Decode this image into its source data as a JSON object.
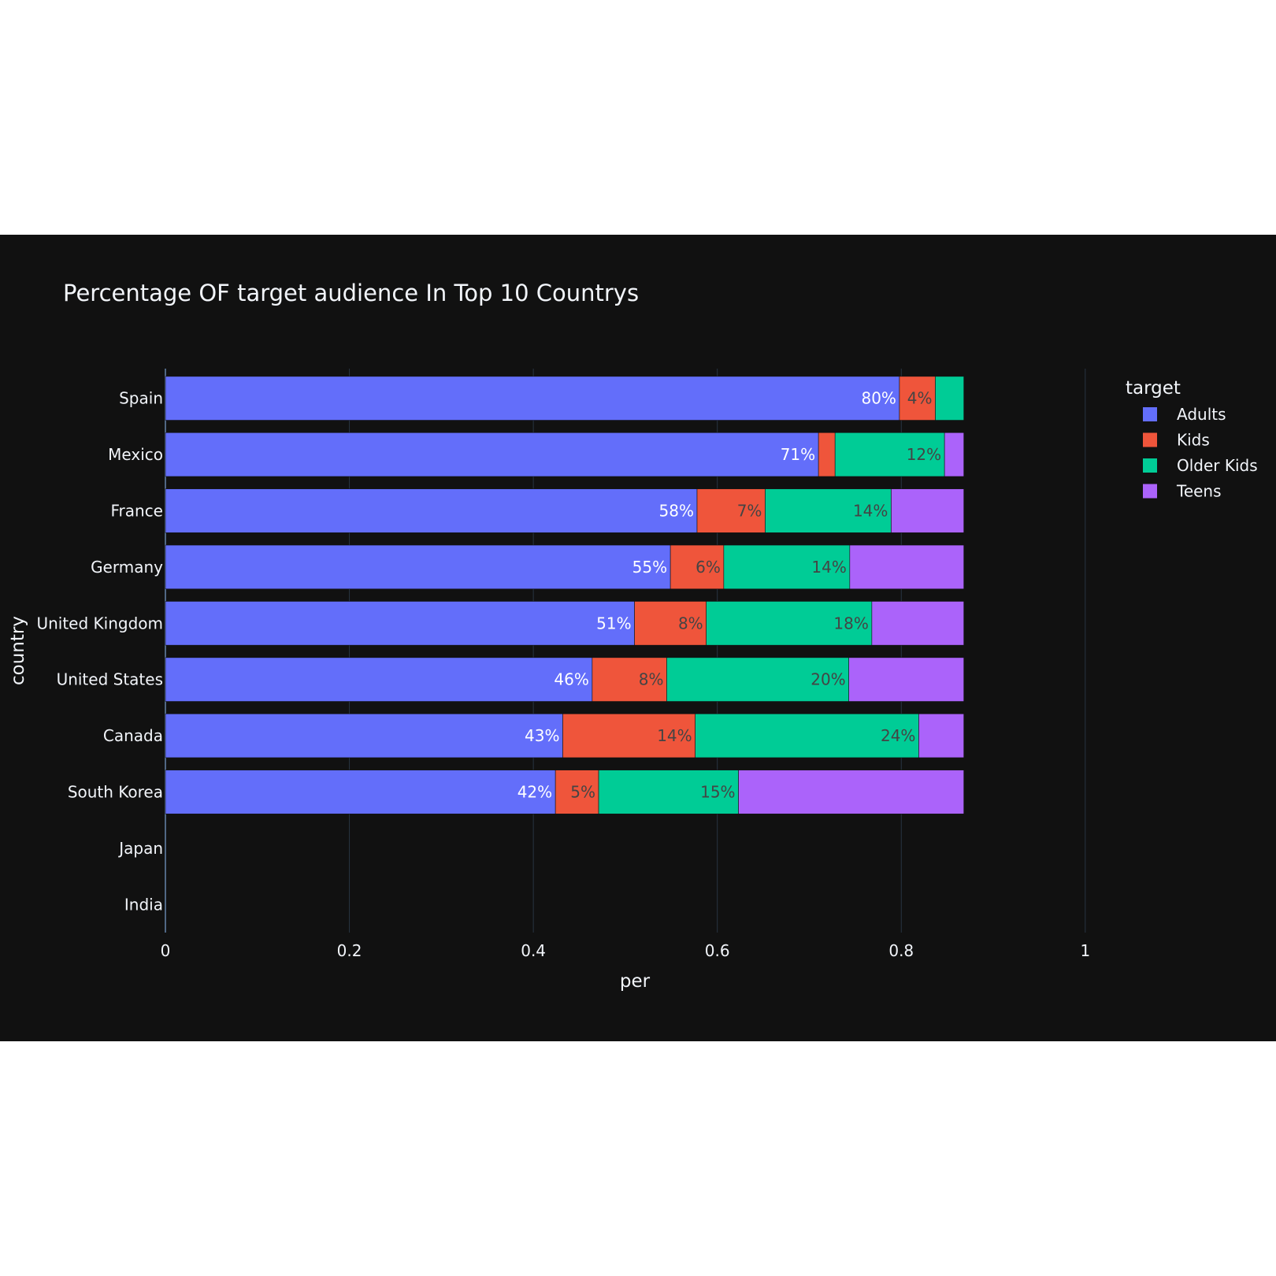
{
  "chart_data": {
    "type": "bar",
    "orientation": "horizontal",
    "barmode": "stack",
    "title": "Percentage OF target audience In Top 10 Countrys",
    "xlabel": "per",
    "ylabel": "country",
    "legend_title": "target",
    "legend_position": "top-right",
    "xlim": [
      0,
      1.15
    ],
    "x_ticks": [
      0,
      0.2,
      0.4,
      0.6,
      0.8,
      1
    ],
    "x_tick_labels": [
      "0",
      "0.2",
      "0.4",
      "0.6",
      "0.8",
      "1"
    ],
    "grid": true,
    "categories": [
      "Spain",
      "Mexico",
      "France",
      "Germany",
      "United Kingdom",
      "United States",
      "Canada",
      "South Korea",
      "Japan",
      "India"
    ],
    "series": [
      {
        "name": "Adults",
        "color": "#636efa",
        "label_color": "#ffffff",
        "values": [
          0.798,
          0.71,
          0.578,
          0.549,
          0.51,
          0.464,
          0.432,
          0.424,
          null,
          null
        ],
        "labels": [
          "80%",
          "71%",
          "58%",
          "55%",
          "51%",
          "46%",
          "43%",
          "42%",
          "",
          ""
        ]
      },
      {
        "name": "Kids",
        "color": "#ef553b",
        "label_color": "#444444",
        "values": [
          0.039,
          0.018,
          0.074,
          0.058,
          0.078,
          0.081,
          0.144,
          0.047,
          null,
          null
        ],
        "labels": [
          "4%",
          "",
          "7%",
          "6%",
          "8%",
          "8%",
          "14%",
          "5%",
          "",
          ""
        ]
      },
      {
        "name": "Older Kids",
        "color": "#00cc96",
        "label_color": "#444444",
        "values": [
          0.031,
          0.119,
          0.137,
          0.137,
          0.18,
          0.198,
          0.243,
          0.152,
          null,
          null
        ],
        "labels": [
          "",
          "12%",
          "14%",
          "14%",
          "18%",
          "20%",
          "24%",
          "15%",
          "",
          ""
        ]
      },
      {
        "name": "Teens",
        "color": "#ab63fa",
        "label_color": "#444444",
        "values": [
          0.0,
          0.021,
          0.079,
          0.124,
          0.1,
          0.125,
          0.049,
          0.245,
          null,
          null
        ],
        "labels": [
          "",
          "",
          "",
          "",
          "",
          "",
          "",
          "",
          "",
          ""
        ]
      }
    ]
  }
}
